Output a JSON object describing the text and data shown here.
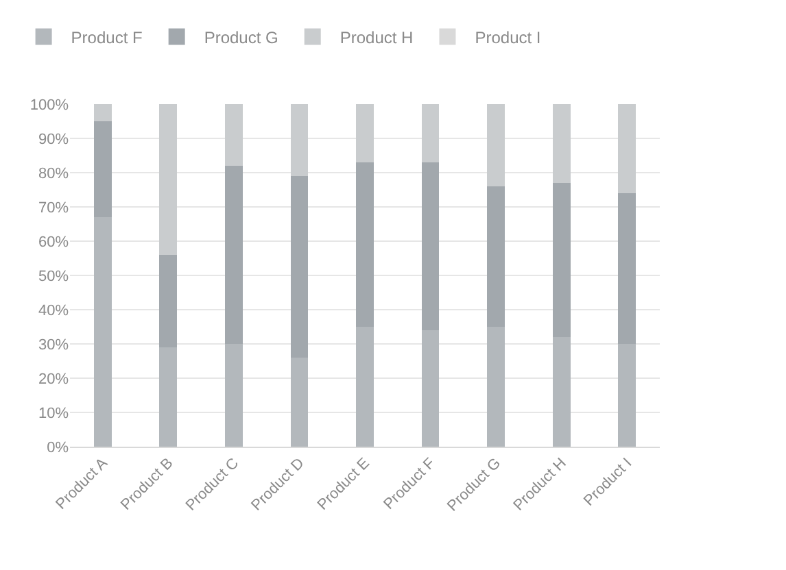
{
  "chart_data": {
    "type": "bar",
    "stacked": true,
    "categories": [
      "Product A",
      "Product B",
      "Product C",
      "Product D",
      "Product E",
      "Product F",
      "Product G",
      "Product H",
      "Product I"
    ],
    "series": [
      {
        "name": "Product F",
        "color": "#b3b8bc",
        "values": [
          67,
          29,
          30,
          26,
          35,
          34,
          35,
          32,
          30
        ]
      },
      {
        "name": "Product G",
        "color": "#a2a8ad",
        "values": [
          28,
          27,
          52,
          53,
          48,
          49,
          41,
          45,
          44
        ]
      },
      {
        "name": "Product H",
        "color": "#c9ccce",
        "values": [
          5,
          44,
          18,
          21,
          17,
          17,
          24,
          23,
          26
        ]
      },
      {
        "name": "Product I",
        "color": "#d9d9d9",
        "values": [
          0,
          0,
          0,
          0,
          0,
          0,
          0,
          0,
          0
        ]
      }
    ],
    "ylim": [
      0,
      100
    ],
    "yticks": [
      {
        "value": 0,
        "label": "0%"
      },
      {
        "value": 10,
        "label": "10%"
      },
      {
        "value": 20,
        "label": "20%"
      },
      {
        "value": 30,
        "label": "30%"
      },
      {
        "value": 40,
        "label": "40%"
      },
      {
        "value": 50,
        "label": "50%"
      },
      {
        "value": 60,
        "label": "60%"
      },
      {
        "value": 70,
        "label": "70%"
      },
      {
        "value": 80,
        "label": "80%"
      },
      {
        "value": 90,
        "label": "90%"
      },
      {
        "value": 100,
        "label": "100%"
      }
    ],
    "grid": "y",
    "legend": "top"
  }
}
